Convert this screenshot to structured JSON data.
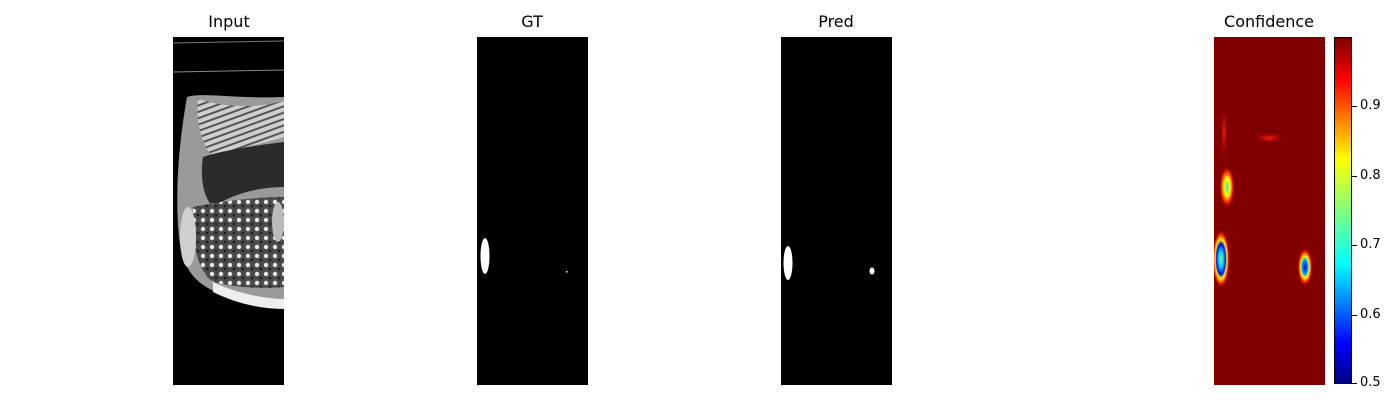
{
  "panels": [
    {
      "id": "input",
      "title": "Input"
    },
    {
      "id": "gt",
      "title": "GT"
    },
    {
      "id": "pred",
      "title": "Pred"
    },
    {
      "id": "confidence",
      "title": "Confidence"
    }
  ],
  "colorbar": {
    "colormap": "jet",
    "range": [
      0.5,
      1.0
    ],
    "ticks": [
      "0.5",
      "0.6",
      "0.7",
      "0.8",
      "0.9"
    ]
  }
}
